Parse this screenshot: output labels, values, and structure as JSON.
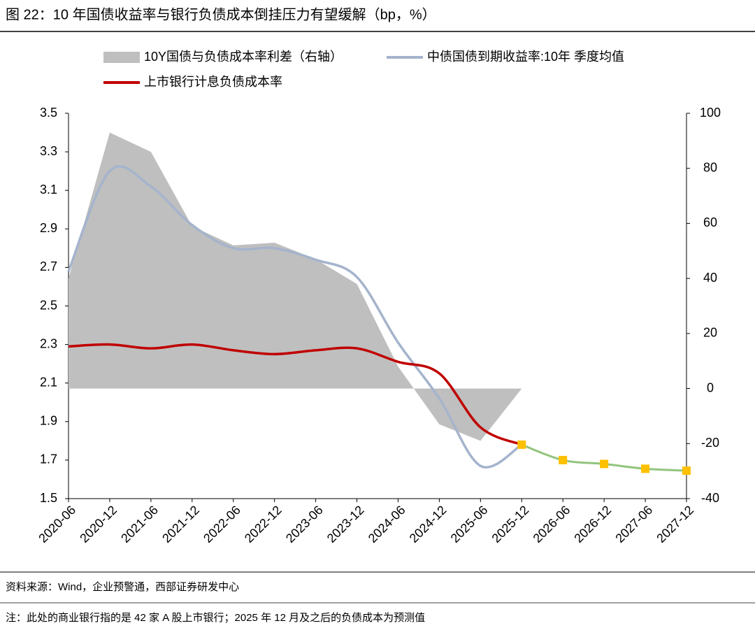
{
  "chart_data": {
    "type": "combo",
    "title": "图 22：10 年国债收益率与银行负债成本倒挂压力有望缓解（bp，%）",
    "source": "资料来源：Wind，企业预警通，西部证券研发中心",
    "note": "注：此处的商业银行指的是 42 家 A 股上市银行；2025 年 12 月及之后的负债成本为预测值",
    "categories": [
      "2020-06",
      "2020-12",
      "2021-06",
      "2021-12",
      "2022-06",
      "2022-12",
      "2023-06",
      "2023-12",
      "2024-06",
      "2024-12",
      "2025-06",
      "2025-12",
      "2026-06",
      "2026-12",
      "2027-06",
      "2027-12"
    ],
    "ylim": [
      1.5,
      3.5
    ],
    "yticks": [
      1.5,
      1.7,
      1.9,
      2.1,
      2.3,
      2.5,
      2.7,
      2.9,
      3.1,
      3.3,
      3.5
    ],
    "y2lim": [
      -40,
      100
    ],
    "y2ticks": [
      -40,
      -20,
      0,
      20,
      40,
      60,
      80,
      100
    ],
    "series": [
      {
        "name": "10Y国债与负债成本率利差（右轴）",
        "kind": "area",
        "axis": "y2",
        "color": "#bfbfbf",
        "values": [
          40,
          93,
          86,
          59,
          52,
          53,
          47,
          38,
          8,
          -13,
          -19,
          0,
          null,
          null,
          null,
          null
        ]
      },
      {
        "name": "中债国债到期收益率:10年  季度均值",
        "kind": "line",
        "color": "#a5b4cc",
        "values": [
          2.68,
          3.2,
          3.12,
          2.92,
          2.8,
          2.8,
          2.74,
          2.65,
          2.31,
          2.02,
          1.67,
          1.78,
          null,
          null,
          null,
          null
        ]
      },
      {
        "name": "上市银行计息负债成本率",
        "kind": "line",
        "color": "#c00000",
        "values": [
          2.29,
          2.3,
          2.28,
          2.3,
          2.27,
          2.25,
          2.27,
          2.28,
          2.21,
          2.15,
          1.87,
          1.78,
          null,
          null,
          null,
          null
        ]
      },
      {
        "kind": "line",
        "color": "#92c47d",
        "marker_color": "#ffc000",
        "values": [
          null,
          null,
          null,
          null,
          null,
          null,
          null,
          null,
          null,
          null,
          null,
          1.78,
          1.7,
          1.68,
          1.655,
          1.645
        ]
      }
    ]
  }
}
